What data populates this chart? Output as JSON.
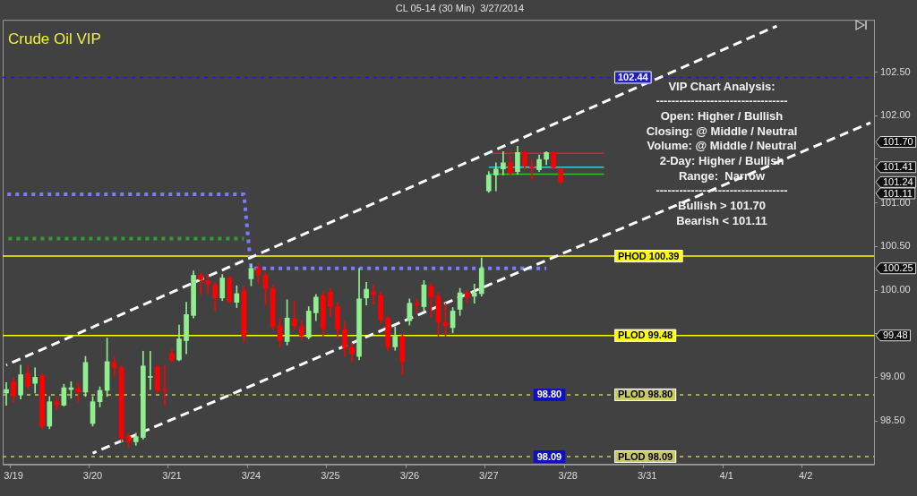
{
  "chart_data": {
    "type": "candlestick",
    "title": "CL 05-14 (30 Min)  3/27/2014",
    "subtitle": "Crude Oil VIP",
    "categories": [
      null,
      "3/19",
      null,
      null,
      null,
      null,
      null,
      null,
      null,
      null,
      null,
      null,
      "3/20",
      null,
      null,
      null,
      null,
      null,
      null,
      null,
      null,
      null,
      null,
      "3/21",
      null,
      null,
      null,
      null,
      null,
      null,
      null,
      null,
      null,
      null,
      "3/24",
      null,
      null,
      null,
      null,
      null,
      null,
      null,
      null,
      null,
      null,
      "3/25",
      null,
      null,
      null,
      null,
      null,
      null,
      null,
      null,
      null,
      null,
      "3/26",
      null,
      null,
      null,
      null,
      null,
      null,
      null,
      null,
      null,
      null,
      "3/27",
      null,
      null,
      null,
      null,
      null,
      null,
      null,
      null,
      null,
      null,
      "3/28",
      null,
      null,
      null,
      null,
      null,
      null,
      null,
      null,
      null,
      null,
      "3/31",
      null,
      null,
      null,
      null,
      null,
      null,
      null,
      null,
      null,
      null,
      "4/1",
      null,
      null,
      null,
      null,
      null,
      null,
      null,
      null,
      null,
      null,
      "4/2",
      null,
      null,
      null,
      null,
      null,
      null,
      null,
      null,
      null
    ],
    "ohlc": [
      [
        98.82,
        98.94,
        98.68,
        98.86
      ],
      [
        98.95,
        99.0,
        98.72,
        98.79
      ],
      [
        98.8,
        99.14,
        98.75,
        99.03
      ],
      [
        99.04,
        99.13,
        98.87,
        98.9
      ],
      [
        98.93,
        99.11,
        98.82,
        99.0
      ],
      [
        99.02,
        99.04,
        98.41,
        98.44
      ],
      [
        98.44,
        98.78,
        98.41,
        98.72
      ],
      [
        98.72,
        98.77,
        98.63,
        98.68
      ],
      [
        98.68,
        98.92,
        98.67,
        98.88
      ],
      [
        98.86,
        98.95,
        98.76,
        98.88
      ],
      [
        98.87,
        98.94,
        98.72,
        98.83
      ],
      [
        98.83,
        99.24,
        98.78,
        99.17
      ],
      [
        98.47,
        98.78,
        98.44,
        98.72
      ],
      [
        98.72,
        98.89,
        98.66,
        98.85
      ],
      [
        98.85,
        99.45,
        98.78,
        99.18
      ],
      [
        99.17,
        99.24,
        99.01,
        99.11
      ],
      [
        99.11,
        99.13,
        98.26,
        98.31
      ],
      [
        98.32,
        98.36,
        98.2,
        98.26
      ],
      [
        98.26,
        98.36,
        98.22,
        98.32
      ],
      [
        98.31,
        99.3,
        98.29,
        99.13
      ],
      [
        99.0,
        99.3,
        98.86,
        99.01
      ],
      [
        99.12,
        99.14,
        98.82,
        98.85
      ],
      [
        98.86,
        99.14,
        98.68,
        98.85
      ],
      [
        99.27,
        99.32,
        99.17,
        99.2
      ],
      [
        99.2,
        99.6,
        99.19,
        99.44
      ],
      [
        99.42,
        99.86,
        99.27,
        99.72
      ],
      [
        99.71,
        100.22,
        99.68,
        100.17
      ],
      [
        100.17,
        100.2,
        99.95,
        100.12
      ],
      [
        100.11,
        100.18,
        99.96,
        100.07
      ],
      [
        100.06,
        100.09,
        99.76,
        99.91
      ],
      [
        99.91,
        100.18,
        99.88,
        100.14
      ],
      [
        100.14,
        100.16,
        99.85,
        99.87
      ],
      [
        99.86,
        100.05,
        99.8,
        99.96
      ],
      [
        99.99,
        100.05,
        99.4,
        99.47
      ],
      [
        100.13,
        100.3,
        100.05,
        100.25
      ],
      [
        100.25,
        100.3,
        100.07,
        100.17
      ],
      [
        100.17,
        100.2,
        99.83,
        100.02
      ],
      [
        100.02,
        100.06,
        99.55,
        99.58
      ],
      [
        99.59,
        99.68,
        99.35,
        99.42
      ],
      [
        99.41,
        99.89,
        99.37,
        99.68
      ],
      [
        99.67,
        99.87,
        99.55,
        99.59
      ],
      [
        99.58,
        99.65,
        99.43,
        99.48
      ],
      [
        99.46,
        99.81,
        99.44,
        99.76
      ],
      [
        99.74,
        99.95,
        99.65,
        99.92
      ],
      [
        99.94,
        99.99,
        99.47,
        99.56
      ],
      [
        99.98,
        100.02,
        99.7,
        99.81
      ],
      [
        99.81,
        99.86,
        99.45,
        99.55
      ],
      [
        99.55,
        99.64,
        99.24,
        99.34
      ],
      [
        99.34,
        99.39,
        99.18,
        99.27
      ],
      [
        99.24,
        100.25,
        99.2,
        99.9
      ],
      [
        99.91,
        100.09,
        99.83,
        100.01
      ],
      [
        99.98,
        100.06,
        99.84,
        99.95
      ],
      [
        99.94,
        99.98,
        99.62,
        99.66
      ],
      [
        99.68,
        99.7,
        99.3,
        99.35
      ],
      [
        99.35,
        99.58,
        99.31,
        99.47
      ],
      [
        99.47,
        99.5,
        99.03,
        99.18
      ],
      [
        99.65,
        99.9,
        99.6,
        99.85
      ],
      [
        99.85,
        99.9,
        99.74,
        99.83
      ],
      [
        99.81,
        100.11,
        99.76,
        100.06
      ],
      [
        100.04,
        100.08,
        99.69,
        99.92
      ],
      [
        99.93,
        99.97,
        99.47,
        99.63
      ],
      [
        99.63,
        99.85,
        99.47,
        99.59
      ],
      [
        99.57,
        99.8,
        99.51,
        99.76
      ],
      [
        99.78,
        100.02,
        99.71,
        99.97
      ],
      [
        99.97,
        100.0,
        99.85,
        99.92
      ],
      [
        99.93,
        100.07,
        99.85,
        99.97
      ],
      [
        99.96,
        100.37,
        99.93,
        100.25
      ],
      [
        101.14,
        101.36,
        101.12,
        101.32
      ],
      [
        101.32,
        101.46,
        101.14,
        101.39
      ],
      [
        101.39,
        101.59,
        101.32,
        101.46
      ],
      [
        101.46,
        101.54,
        101.33,
        101.35
      ],
      [
        101.36,
        101.65,
        101.33,
        101.58
      ],
      [
        101.58,
        101.6,
        101.38,
        101.42
      ],
      [
        101.42,
        101.5,
        101.27,
        101.41
      ],
      [
        101.38,
        101.55,
        101.36,
        101.5
      ],
      [
        101.5,
        101.59,
        101.44,
        101.58
      ],
      [
        101.58,
        101.59,
        101.39,
        101.41
      ],
      [
        101.39,
        101.4,
        101.22,
        101.24
      ],
      null,
      null,
      null,
      null,
      null,
      null,
      null,
      null,
      null,
      null,
      null,
      null,
      null,
      null,
      null,
      null,
      null,
      null,
      null,
      null,
      null,
      null,
      null,
      null,
      null,
      null,
      null,
      null,
      null,
      null,
      null,
      null,
      null,
      null,
      null,
      null,
      null,
      null,
      null,
      null,
      null,
      null,
      null
    ],
    "colors": [
      "#90ee90",
      "#ff0000",
      "#90ee90",
      "#ff0000",
      "#90ee90",
      "#ff0000",
      "#90ee90",
      "#ff0000",
      "#90ee90",
      "#90ee90",
      "#ff0000",
      "#90ee90",
      "#90ee90",
      "#90ee90",
      "#90ee90",
      "#ff0000",
      "#ff0000",
      "#ff0000",
      "#90ee90",
      "#90ee90",
      "#90ee90",
      "#ff0000",
      "#ff0000",
      "#ff0000",
      "#90ee90",
      "#90ee90",
      "#90ee90",
      "#ff0000",
      "#ff0000",
      "#ff0000",
      "#90ee90",
      "#ff0000",
      "#90ee90",
      "#ff0000",
      "#90ee90",
      "#ff0000",
      "#ff0000",
      "#ff0000",
      "#ff0000",
      "#90ee90",
      "#ff0000",
      "#ff0000",
      "#90ee90",
      "#90ee90",
      "#ff0000",
      "#ff0000",
      "#ff0000",
      "#ff0000",
      "#ff0000",
      "#90ee90",
      "#90ee90",
      "#ff0000",
      "#ff0000",
      "#ff0000",
      "#90ee90",
      "#ff0000",
      "#90ee90",
      "#ff0000",
      "#90ee90",
      "#ff0000",
      "#ff0000",
      "#ff0000",
      "#90ee90",
      "#90ee90",
      "#ff0000",
      "#90ee90",
      "#90ee90",
      "#90ee90",
      "#90ee90",
      "#90ee90",
      "#ff0000",
      "#90ee90",
      "#ff0000",
      "#ff0000",
      "#90ee90",
      "#90ee90",
      "#ff0000",
      "#ff0000",
      null,
      null,
      null,
      null,
      null,
      null,
      null,
      null,
      null,
      null,
      null,
      null,
      null,
      null,
      null,
      null,
      null,
      null,
      null,
      null,
      null,
      null,
      null,
      null,
      null,
      null,
      null,
      null,
      null,
      null,
      null,
      null,
      null,
      null,
      null,
      null,
      null,
      null,
      null,
      null,
      null,
      null,
      null
    ],
    "series": [
      {
        "type": "line",
        "color": "#ffffff",
        "line_style": "dashed",
        "values": [
          99.14,
          null,
          null,
          null,
          null,
          null,
          null,
          null,
          null,
          null,
          null,
          null,
          null,
          null,
          null,
          null,
          null,
          null,
          null,
          null,
          null,
          null,
          null,
          null,
          null,
          null,
          null,
          null,
          null,
          null,
          null,
          null,
          null,
          null,
          null,
          null,
          null,
          null,
          null,
          null,
          null,
          null,
          null,
          null,
          null,
          null,
          null,
          null,
          null,
          null,
          null,
          null,
          null,
          null,
          null,
          null,
          null,
          null,
          null,
          null,
          null,
          null,
          null,
          null,
          null,
          null,
          null,
          null,
          null,
          null,
          null,
          null,
          null,
          null,
          null,
          null,
          null,
          null,
          null,
          null,
          null,
          null,
          null,
          null,
          null,
          null,
          null,
          null,
          null,
          null,
          null,
          null,
          null,
          null,
          null,
          null,
          null,
          null,
          null,
          null,
          null,
          null,
          null,
          null,
          null,
          null,
          null,
          103.03,
          null,
          null,
          null,
          null,
          null,
          null,
          null,
          null,
          null,
          null,
          null,
          null,
          null
        ]
      },
      {
        "type": "line",
        "color": "#ffffff",
        "line_style": "dashed",
        "values": [
          null,
          null,
          null,
          null,
          null,
          null,
          null,
          null,
          null,
          null,
          null,
          null,
          98.13,
          null,
          null,
          null,
          null,
          null,
          null,
          null,
          null,
          null,
          null,
          null,
          null,
          null,
          null,
          null,
          null,
          null,
          null,
          null,
          null,
          null,
          null,
          null,
          null,
          null,
          null,
          null,
          null,
          null,
          null,
          null,
          null,
          null,
          null,
          null,
          null,
          null,
          null,
          null,
          null,
          null,
          null,
          null,
          null,
          null,
          null,
          null,
          null,
          null,
          null,
          null,
          null,
          null,
          null,
          null,
          null,
          null,
          null,
          null,
          null,
          null,
          null,
          null,
          null,
          null,
          null,
          null,
          null,
          null,
          null,
          null,
          null,
          null,
          null,
          null,
          null,
          null,
          null,
          null,
          null,
          null,
          null,
          null,
          null,
          null,
          null,
          null,
          null,
          null,
          null,
          null,
          null,
          null,
          null,
          null,
          null,
          null,
          null,
          null,
          null,
          null,
          null,
          null,
          null,
          null,
          null,
          null,
          101.92
        ]
      },
      {
        "type": "line",
        "color": "#7b7bff",
        "line_style": "dotted",
        "values": [
          101.1,
          null,
          null,
          null,
          null,
          null,
          null,
          null,
          null,
          null,
          null,
          null,
          null,
          null,
          null,
          null,
          null,
          null,
          null,
          null,
          null,
          null,
          null,
          null,
          null,
          null,
          null,
          null,
          null,
          null,
          null,
          null,
          null,
          101.1,
          100.25,
          null,
          null,
          null,
          null,
          null,
          null,
          null,
          null,
          null,
          null,
          null,
          null,
          null,
          null,
          null,
          null,
          null,
          null,
          null,
          null,
          null,
          null,
          null,
          null,
          null,
          null,
          null,
          null,
          null,
          null,
          null,
          null,
          null,
          null,
          null,
          null,
          null,
          null,
          null,
          null,
          100.25,
          null,
          null,
          null,
          null,
          null,
          null,
          null,
          null,
          null,
          null,
          null,
          null,
          null,
          null,
          null,
          null,
          null,
          null,
          null,
          null,
          null,
          null,
          null,
          null,
          null,
          null,
          null,
          null,
          null,
          null,
          null,
          null,
          null,
          null,
          null,
          null,
          null,
          null,
          null,
          null,
          null,
          null,
          null,
          null,
          null
        ]
      },
      {
        "type": "line",
        "color": "#2ea02e",
        "line_style": "dotted",
        "values": [
          100.59,
          null,
          null,
          null,
          null,
          null,
          null,
          null,
          null,
          null,
          null,
          null,
          null,
          null,
          null,
          null,
          null,
          null,
          null,
          null,
          null,
          null,
          null,
          null,
          null,
          null,
          null,
          null,
          null,
          null,
          null,
          null,
          null,
          100.59,
          null,
          null,
          null,
          null,
          null,
          null,
          null,
          null,
          null,
          null,
          null,
          null,
          null,
          null,
          null,
          null,
          null,
          null,
          null,
          null,
          null,
          null,
          null,
          null,
          null,
          null,
          null,
          null,
          null,
          null,
          null,
          null,
          null,
          null,
          null,
          null,
          null,
          null,
          null,
          null,
          null,
          null,
          null,
          null,
          null,
          null,
          null,
          null,
          null,
          null,
          null,
          null,
          null,
          null,
          null,
          null,
          null,
          null,
          null,
          null,
          null,
          null,
          null,
          null,
          null,
          null,
          null,
          null,
          null,
          null,
          null,
          null,
          null,
          null,
          null,
          null,
          null,
          null,
          null,
          null,
          null,
          null,
          null,
          null,
          null,
          null,
          null
        ]
      },
      {
        "type": "line",
        "color": "#e02020",
        "line_style": "solid",
        "values": [
          null,
          null,
          null,
          null,
          null,
          null,
          null,
          null,
          null,
          null,
          null,
          null,
          null,
          null,
          null,
          null,
          null,
          null,
          null,
          null,
          null,
          null,
          null,
          null,
          null,
          null,
          null,
          null,
          null,
          null,
          null,
          null,
          null,
          null,
          null,
          null,
          null,
          null,
          null,
          null,
          null,
          null,
          null,
          null,
          null,
          null,
          null,
          null,
          null,
          null,
          null,
          null,
          null,
          null,
          null,
          null,
          null,
          null,
          null,
          null,
          null,
          null,
          null,
          null,
          null,
          null,
          null,
          101.57,
          null,
          null,
          null,
          null,
          null,
          null,
          null,
          null,
          null,
          null,
          null,
          null,
          null,
          null,
          null,
          101.57,
          null,
          null,
          null,
          null,
          null,
          null,
          null,
          null,
          null,
          null,
          null,
          null,
          null,
          null,
          null,
          null,
          null,
          null,
          null,
          null,
          null,
          null,
          null,
          null,
          null,
          null,
          null,
          null,
          null,
          null,
          null,
          null,
          null,
          null,
          null,
          null,
          null
        ]
      },
      {
        "type": "line",
        "color": "#40c8e0",
        "line_style": "solid",
        "values": [
          null,
          null,
          null,
          null,
          null,
          null,
          null,
          null,
          null,
          null,
          null,
          null,
          null,
          null,
          null,
          null,
          null,
          null,
          null,
          null,
          null,
          null,
          null,
          null,
          null,
          null,
          null,
          null,
          null,
          null,
          null,
          null,
          null,
          null,
          null,
          null,
          null,
          null,
          null,
          null,
          null,
          null,
          null,
          null,
          null,
          null,
          null,
          null,
          null,
          null,
          null,
          null,
          null,
          null,
          null,
          null,
          null,
          null,
          null,
          null,
          null,
          null,
          null,
          null,
          null,
          null,
          null,
          101.41,
          null,
          null,
          null,
          null,
          null,
          null,
          null,
          null,
          null,
          null,
          null,
          null,
          null,
          null,
          null,
          101.41,
          null,
          null,
          null,
          null,
          null,
          null,
          null,
          null,
          null,
          null,
          null,
          null,
          null,
          null,
          null,
          null,
          null,
          null,
          null,
          null,
          null,
          null,
          null,
          null,
          null,
          null,
          null,
          null,
          null,
          null,
          null,
          null,
          null,
          null,
          null,
          null,
          null
        ]
      },
      {
        "type": "line",
        "color": "#30c030",
        "line_style": "solid",
        "values": [
          null,
          null,
          null,
          null,
          null,
          null,
          null,
          null,
          null,
          null,
          null,
          null,
          null,
          null,
          null,
          null,
          null,
          null,
          null,
          null,
          null,
          null,
          null,
          null,
          null,
          null,
          null,
          null,
          null,
          null,
          null,
          null,
          null,
          null,
          null,
          null,
          null,
          null,
          null,
          null,
          null,
          null,
          null,
          null,
          null,
          null,
          null,
          null,
          null,
          null,
          null,
          null,
          null,
          null,
          null,
          null,
          null,
          null,
          null,
          null,
          null,
          null,
          null,
          null,
          null,
          null,
          null,
          101.33,
          null,
          null,
          null,
          null,
          null,
          null,
          null,
          null,
          null,
          null,
          null,
          null,
          null,
          null,
          null,
          101.33,
          null,
          null,
          null,
          null,
          null,
          null,
          null,
          null,
          null,
          null,
          null,
          null,
          null,
          null,
          null,
          null,
          null,
          null,
          null,
          null,
          null,
          null,
          null,
          null,
          null,
          null,
          null,
          null,
          null,
          null,
          null,
          null,
          null,
          null,
          null,
          null,
          null
        ]
      }
    ],
    "ylim": [
      98.0,
      103.1
    ],
    "yticks": [
      {
        "value": 98.5,
        "label": "98.50"
      },
      {
        "value": 99,
        "label": "99.00"
      },
      {
        "value": 99.5,
        "label": null
      },
      {
        "value": 100,
        "label": "100.00"
      },
      {
        "value": 100.5,
        "label": "100.50"
      },
      {
        "value": 101,
        "label": "101.00"
      },
      {
        "value": 101.5,
        "label": null
      },
      {
        "value": 102,
        "label": "102.00"
      },
      {
        "value": 102.5,
        "label": "102.50"
      }
    ],
    "ref_lines": [
      {
        "axis": "y",
        "value": 102.44,
        "label": "102.44",
        "color": "#2020c0",
        "line_style": "dotted"
      },
      {
        "axis": "y",
        "value": 100.39,
        "label": "PHOD 100.39",
        "color": "#ffff00",
        "line_style": "solid"
      },
      {
        "axis": "y",
        "value": 99.48,
        "label": "PLOD 99.48",
        "color": "#ffff00",
        "line_style": "solid"
      },
      {
        "axis": "y",
        "value": 98.8,
        "label": "PLOD 98.80",
        "color": "#c8c864",
        "line_style": "dotted"
      },
      {
        "axis": "y",
        "value": 98.09,
        "label": "PLOD 98.09",
        "color": "#c8c864",
        "line_style": "dotted"
      }
    ],
    "annotations": [
      "VIP Chart Analysis:",
      "----------------------------------",
      "Open: Higher / Bullish",
      "Closing: @ Middle / Neutral",
      "Volume: @ Middle / Neutral",
      "2-Day: Higher / Bullish",
      "Range:  Narrow",
      "----------------------------------",
      "Bullish > 101.70",
      "Bearish < 101.11",
      {
        "text": "98.80",
        "x": "3/28",
        "y": 98.8
      },
      {
        "text": "98.09",
        "x": "3/28",
        "y": 98.09
      },
      "101.70",
      "101.41",
      "101.24",
      "101.11",
      "100.25",
      "99.48"
    ],
    "marker": "none",
    "grid": false,
    "legend": false
  }
}
